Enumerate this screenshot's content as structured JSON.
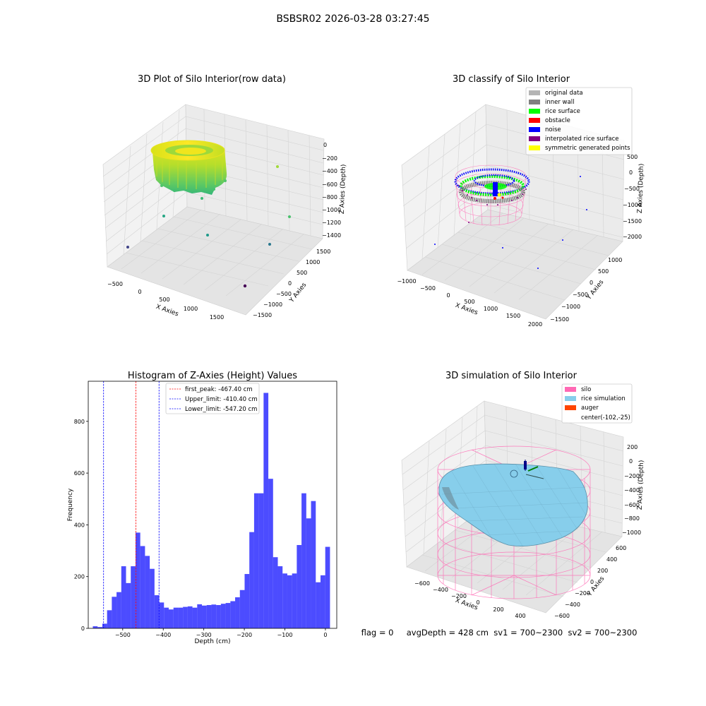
{
  "suptitle": "BSBSR02 2026-03-28 03:27:45",
  "panel1": {
    "title": "3D Plot of Silo Interior(row data)",
    "xlabel": "X Axies",
    "ylabel": "Y Axies",
    "zlabel": "Z Axies (Depth)",
    "xticks": [
      "−500",
      "0",
      "500",
      "1000",
      "1500"
    ],
    "yticks": [
      "1500",
      "1000",
      "500",
      "0",
      "−500",
      "−1000",
      "−1500"
    ],
    "zticks": [
      "0",
      "−200",
      "−400",
      "−600",
      "−800",
      "−1000",
      "−1200",
      "−1400"
    ]
  },
  "panel2": {
    "title": "3D classify of Silo Interior",
    "xlabel": "X Axies",
    "ylabel": "Y Axies",
    "zlabel": "Z Axies (Depth)",
    "xticks": [
      "−1000",
      "−500",
      "0",
      "500",
      "1000",
      "1500",
      "2000"
    ],
    "yticks": [
      "1000",
      "500",
      "0",
      "−500",
      "−1000",
      "−1500"
    ],
    "zticks": [
      "500",
      "0",
      "−500",
      "−1000",
      "−1500",
      "−2000"
    ],
    "legend": [
      {
        "label": "original data",
        "color": "#b4b4b4"
      },
      {
        "label": "inner wall",
        "color": "#808080"
      },
      {
        "label": "rice surface",
        "color": "#00ff00"
      },
      {
        "label": "obstacle",
        "color": "#ff0000"
      },
      {
        "label": "noise",
        "color": "#0000ff"
      },
      {
        "label": "interpolated rice surface",
        "color": "#800080"
      },
      {
        "label": "symmetric generated points",
        "color": "#ffff00"
      }
    ]
  },
  "panel4": {
    "title": "3D simulation of Silo Interior",
    "xlabel": "X Axies",
    "ylabel": "Y Axies",
    "zlabel": "Z Axies (Depth)",
    "xticks": [
      "−600",
      "−400",
      "−200",
      "0",
      "200",
      "400"
    ],
    "yticks": [
      "600",
      "400",
      "200",
      "0",
      "−200",
      "−400",
      "−600"
    ],
    "zticks": [
      "200",
      "0",
      "−200",
      "−400",
      "−600",
      "−800",
      "−1000"
    ],
    "legend": [
      {
        "label": "silo",
        "color": "#ff69b4"
      },
      {
        "label": "rice simulation",
        "color": "#87ceeb"
      },
      {
        "label": "auger",
        "color": "#ff4500"
      },
      {
        "label": "center(-102,-25)",
        "color": ""
      }
    ]
  },
  "bottom_text": "flag = 0     avgDepth = 428 cm  sv1 = 700~2300  sv2 = 700~2300",
  "chart_data": {
    "type": "bar",
    "title": "Histogram of Z-Axies (Height) Values",
    "xlabel": "Depth (cm)",
    "ylabel": "Frequency",
    "xlim": [
      -585,
      28
    ],
    "ylim": [
      0,
      955
    ],
    "xticks": [
      -500,
      -400,
      -300,
      -200,
      -100,
      0
    ],
    "yticks": [
      0,
      200,
      400,
      600,
      800
    ],
    "bin_start": -573.7,
    "bin_width": 11.7,
    "values": [
      8,
      5,
      18,
      70,
      122,
      140,
      240,
      175,
      240,
      370,
      318,
      280,
      230,
      128,
      100,
      80,
      73,
      80,
      80,
      83,
      85,
      80,
      93,
      88,
      90,
      92,
      90,
      95,
      98,
      105,
      120,
      148,
      210,
      372,
      522,
      522,
      910,
      578,
      275,
      240,
      212,
      205,
      212,
      322,
      522,
      425,
      492,
      178,
      205,
      315
    ],
    "bar_color": "#0000ff",
    "lines": [
      {
        "label": "first_peak: -467.40 cm",
        "x": -467.4,
        "color": "#ff0000"
      },
      {
        "label": "Upper_limit: -410.40 cm",
        "x": -410.4,
        "color": "#0000ff"
      },
      {
        "label": "Lower_limit: -547.20 cm",
        "x": -547.2,
        "color": "#0000ff"
      }
    ]
  }
}
